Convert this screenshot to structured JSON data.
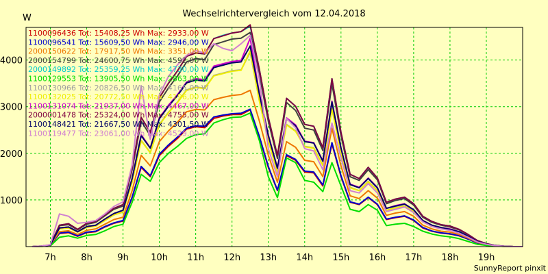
{
  "chart_data": {
    "type": "line",
    "title": "Wechselrichtervergleich vom 12.04.2018",
    "ylabel": "W",
    "xlabel": "",
    "footer": "SunnyReport pinxit",
    "x_ticks": [
      "7h",
      "8h",
      "9h",
      "10h",
      "11h",
      "12h",
      "13h",
      "14h",
      "15h",
      "16h",
      "17h",
      "18h",
      "19h"
    ],
    "y_ticks": [
      1000,
      2000,
      3000,
      4000
    ],
    "xlim": [
      6.33,
      20.0
    ],
    "ylim": [
      0,
      4700
    ],
    "grid": true,
    "legend_position": "top-left, inside plot",
    "x": [
      6.5,
      6.75,
      7.0,
      7.25,
      7.5,
      7.75,
      8.0,
      8.25,
      8.5,
      8.75,
      9.0,
      9.25,
      9.5,
      9.75,
      10.0,
      10.25,
      10.5,
      10.75,
      11.0,
      11.25,
      11.5,
      11.75,
      12.0,
      12.25,
      12.5,
      12.75,
      13.0,
      13.25,
      13.5,
      13.75,
      14.0,
      14.25,
      14.5,
      14.75,
      15.0,
      15.25,
      15.5,
      15.75,
      16.0,
      16.25,
      16.5,
      16.75,
      17.0,
      17.25,
      17.5,
      17.75,
      18.0,
      18.25,
      18.5,
      18.75,
      19.0,
      19.25,
      19.5,
      19.75,
      20.0
    ],
    "series": [
      {
        "name": "1100096436 Tot: 15408,25 Wh Max: 2933,00 W",
        "color": "#cc0000",
        "values": [
          0,
          5,
          20,
          280,
          300,
          220,
          300,
          320,
          420,
          500,
          550,
          1050,
          1700,
          1500,
          1950,
          2150,
          2320,
          2520,
          2570,
          2550,
          2750,
          2800,
          2830,
          2830,
          2933,
          2350,
          1700,
          1200,
          1950,
          1850,
          1600,
          1580,
          1300,
          2200,
          1500,
          950,
          900,
          1050,
          900,
          580,
          620,
          650,
          560,
          400,
          330,
          290,
          270,
          230,
          160,
          80,
          40,
          15,
          5,
          0,
          0
        ]
      },
      {
        "name": "1100096541 Tot: 15609,50 Wh Max: 2946,00 W",
        "color": "#0000cc",
        "values": [
          0,
          5,
          20,
          290,
          310,
          230,
          310,
          330,
          430,
          510,
          560,
          1060,
          1720,
          1520,
          1980,
          2180,
          2350,
          2540,
          2590,
          2580,
          2780,
          2820,
          2850,
          2860,
          2946,
          2370,
          1720,
          1210,
          1970,
          1870,
          1620,
          1600,
          1320,
          2230,
          1520,
          960,
          910,
          1060,
          910,
          590,
          630,
          660,
          570,
          410,
          335,
          295,
          275,
          235,
          160,
          80,
          40,
          15,
          5,
          0,
          0
        ]
      },
      {
        "name": "2000150622 Tot: 17917,50 Wh Max: 3351,00 W",
        "color": "#ee7700",
        "values": [
          0,
          5,
          25,
          320,
          340,
          260,
          350,
          380,
          480,
          580,
          630,
          1200,
          1960,
          1730,
          2250,
          2480,
          2670,
          2890,
          2940,
          2930,
          3150,
          3200,
          3240,
          3260,
          3351,
          2700,
          1960,
          1380,
          2250,
          2130,
          1850,
          1820,
          1500,
          2540,
          1730,
          1090,
          1030,
          1200,
          1040,
          670,
          720,
          750,
          650,
          460,
          380,
          330,
          310,
          260,
          180,
          90,
          45,
          18,
          5,
          0,
          0
        ]
      },
      {
        "name": "2000154799 Tot: 24600,75 Wh Max: 4592,00 W",
        "color": "#404040",
        "values": [
          0,
          10,
          35,
          450,
          470,
          360,
          480,
          520,
          660,
          800,
          870,
          1650,
          2690,
          2380,
          3100,
          3400,
          3660,
          3960,
          4030,
          4010,
          4330,
          4390,
          4450,
          4470,
          4592,
          3700,
          2690,
          1890,
          3090,
          2920,
          2540,
          2500,
          2060,
          3490,
          2380,
          1500,
          1420,
          1650,
          1430,
          920,
          990,
          1030,
          890,
          630,
          520,
          460,
          420,
          360,
          250,
          125,
          60,
          25,
          8,
          0,
          0
        ]
      },
      {
        "name": "2000149892 Tot: 25359,25 Wh Max: 4730,00 W",
        "color": "#00cccc",
        "values": [
          0,
          10,
          35,
          460,
          490,
          370,
          500,
          540,
          680,
          820,
          900,
          1700,
          2770,
          2450,
          3190,
          3500,
          3770,
          4080,
          4150,
          4130,
          4460,
          4530,
          4580,
          4610,
          4730,
          3810,
          2770,
          1950,
          3180,
          3010,
          2620,
          2580,
          2120,
          3600,
          2450,
          1550,
          1460,
          1700,
          1470,
          950,
          1020,
          1060,
          920,
          650,
          540,
          470,
          440,
          370,
          260,
          130,
          65,
          25,
          8,
          0,
          0
        ]
      },
      {
        "name": "1100129553 Tot: 13905,50 Wh Max: 2863,00 W",
        "color": "#00dd00",
        "values": [
          0,
          5,
          15,
          200,
          230,
          180,
          240,
          260,
          340,
          430,
          480,
          950,
          1550,
          1400,
          1800,
          2000,
          2150,
          2320,
          2400,
          2420,
          2650,
          2720,
          2770,
          2780,
          2863,
          2280,
          1500,
          1050,
          1900,
          1800,
          1420,
          1380,
          1180,
          1800,
          1300,
          800,
          750,
          900,
          780,
          450,
          480,
          500,
          430,
          330,
          270,
          230,
          210,
          170,
          110,
          50,
          25,
          10,
          3,
          0,
          0
        ]
      },
      {
        "name": "1100130966 Tot: 20826,50 Wh Max: 4165,00 W",
        "color": "#a0a0a0",
        "values": [
          0,
          8,
          30,
          380,
          400,
          310,
          410,
          440,
          560,
          680,
          740,
          1400,
          2280,
          2020,
          2620,
          2880,
          3100,
          3360,
          3420,
          3400,
          3670,
          3720,
          3770,
          3790,
          4165,
          3140,
          2280,
          1600,
          2620,
          2480,
          2150,
          2120,
          1750,
          2960,
          2020,
          1270,
          1200,
          1400,
          1210,
          780,
          840,
          870,
          760,
          540,
          440,
          390,
          360,
          300,
          210,
          105,
          52,
          20,
          7,
          0,
          0
        ]
      },
      {
        "name": "1100132025 Tot: 20772,50 Wh Max: 4196,00 W",
        "color": "#eeee00",
        "values": [
          0,
          8,
          30,
          380,
          400,
          310,
          410,
          440,
          560,
          680,
          740,
          1390,
          2270,
          2010,
          2610,
          2870,
          3090,
          3350,
          3410,
          3390,
          3660,
          3710,
          3760,
          3780,
          4196,
          3130,
          2270,
          1600,
          2610,
          2470,
          2140,
          2110,
          1740,
          2950,
          2010,
          1260,
          1200,
          1390,
          1200,
          780,
          830,
          870,
          750,
          530,
          440,
          390,
          360,
          300,
          210,
          105,
          52,
          20,
          7,
          0,
          0
        ]
      },
      {
        "name": "1100131074 Tot: 21937,00 Wh Max: 4467,00 W",
        "color": "#cc00cc",
        "values": [
          0,
          8,
          32,
          400,
          420,
          320,
          430,
          460,
          590,
          710,
          780,
          1470,
          2400,
          2120,
          2760,
          3030,
          3260,
          3530,
          3600,
          3580,
          3870,
          3920,
          3970,
          3990,
          4467,
          3300,
          2400,
          1690,
          2760,
          2610,
          2260,
          2230,
          1840,
          3120,
          2120,
          1340,
          1270,
          1470,
          1270,
          820,
          880,
          920,
          790,
          560,
          460,
          410,
          380,
          320,
          220,
          110,
          55,
          22,
          7,
          0,
          0
        ]
      },
      {
        "name": "2000001478 Tot: 25324,00 Wh Max: 4755,00 W",
        "color": "#800040",
        "values": [
          0,
          10,
          35,
          460,
          490,
          370,
          500,
          540,
          680,
          820,
          900,
          1700,
          2770,
          2450,
          3190,
          3500,
          3770,
          4080,
          4150,
          4130,
          4460,
          4520,
          4580,
          4610,
          4755,
          3810,
          2770,
          1950,
          3180,
          3010,
          2620,
          2580,
          2120,
          3600,
          2450,
          1550,
          1460,
          1700,
          1470,
          950,
          1020,
          1060,
          920,
          650,
          540,
          470,
          440,
          370,
          260,
          130,
          65,
          25,
          8,
          0,
          0
        ]
      },
      {
        "name": "1100148421 Tot: 21667,50 Wh Max: 4301,50 W",
        "color": "#000066",
        "values": [
          0,
          8,
          32,
          400,
          420,
          320,
          430,
          460,
          590,
          710,
          780,
          1460,
          2380,
          2110,
          2740,
          3010,
          3240,
          3510,
          3570,
          3550,
          3840,
          3890,
          3940,
          3960,
          4301,
          3280,
          2380,
          1680,
          2740,
          2590,
          2250,
          2220,
          1830,
          3100,
          2110,
          1330,
          1260,
          1460,
          1260,
          820,
          870,
          910,
          790,
          560,
          460,
          410,
          370,
          320,
          220,
          110,
          55,
          22,
          7,
          0,
          0
        ]
      },
      {
        "name": "1100119477 Tot: 23061,00 Wh Max: 4529,00 W",
        "color": "#d080d0",
        "values": [
          0,
          10,
          40,
          700,
          650,
          500,
          520,
          560,
          700,
          860,
          960,
          1750,
          3450,
          2300,
          3250,
          3650,
          3900,
          4100,
          4200,
          4150,
          4350,
          4250,
          4200,
          4350,
          4529,
          3600,
          2100,
          1500,
          2750,
          2550,
          2100,
          2050,
          1650,
          2650,
          1900,
          1200,
          1150,
          1350,
          1150,
          750,
          800,
          850,
          730,
          530,
          430,
          380,
          350,
          290,
          200,
          100,
          50,
          20,
          6,
          0,
          0
        ]
      }
    ]
  }
}
